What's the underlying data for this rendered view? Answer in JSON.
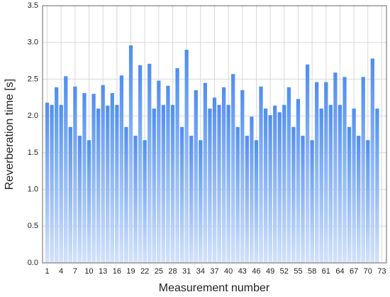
{
  "chart_data": {
    "type": "bar",
    "x_label": "Measurement number",
    "y_label": "Reverberation time   [s]",
    "x": [
      1,
      2,
      3,
      4,
      5,
      6,
      7,
      8,
      9,
      10,
      11,
      12,
      13,
      14,
      15,
      16,
      17,
      18,
      19,
      20,
      21,
      22,
      23,
      24,
      25,
      26,
      27,
      28,
      29,
      30,
      31,
      32,
      33,
      34,
      35,
      36,
      37,
      38,
      39,
      40,
      41,
      42,
      43,
      44,
      45,
      46,
      47,
      48,
      49,
      50,
      51,
      52,
      53,
      54,
      55,
      56,
      57,
      58,
      59,
      60,
      61,
      62,
      63,
      64,
      65,
      66,
      67,
      68,
      69,
      70,
      71,
      72
    ],
    "values": [
      2.18,
      2.15,
      2.39,
      2.15,
      2.54,
      1.85,
      2.4,
      1.73,
      2.31,
      1.67,
      2.3,
      2.1,
      2.42,
      2.14,
      2.31,
      2.15,
      2.55,
      1.85,
      2.96,
      1.73,
      2.69,
      1.67,
      2.71,
      2.1,
      2.48,
      2.15,
      2.41,
      2.15,
      2.65,
      1.85,
      2.9,
      1.73,
      2.35,
      1.67,
      2.45,
      2.1,
      2.25,
      2.15,
      2.39,
      2.15,
      2.57,
      1.85,
      2.35,
      1.73,
      1.99,
      1.67,
      2.4,
      2.1,
      2.01,
      2.14,
      2.05,
      2.15,
      2.39,
      1.85,
      2.23,
      1.73,
      2.7,
      1.67,
      2.46,
      2.1,
      2.46,
      2.15,
      2.59,
      2.15,
      2.53,
      1.85,
      2.1,
      1.73,
      2.53,
      1.67,
      2.78,
      2.1
    ],
    "color": "#4f8ef0",
    "xlim": [
      0,
      74
    ],
    "xticks": [
      1,
      4,
      7,
      10,
      13,
      16,
      19,
      22,
      25,
      28,
      31,
      34,
      37,
      40,
      43,
      46,
      49,
      52,
      55,
      58,
      61,
      64,
      67,
      70,
      73
    ],
    "ylim": [
      0,
      3.5
    ],
    "yticks": [
      {
        "value": 0,
        "label": "0.0"
      },
      {
        "value": 0.5,
        "label": "0.5"
      },
      {
        "value": 1,
        "label": "1.0"
      },
      {
        "value": 1.5,
        "label": "1.5"
      },
      {
        "value": 2,
        "label": "2.0"
      },
      {
        "value": 2.5,
        "label": "2.5"
      },
      {
        "value": 3,
        "label": "3.0"
      },
      {
        "value": 3.5,
        "label": "3.5"
      }
    ],
    "grid": true
  }
}
